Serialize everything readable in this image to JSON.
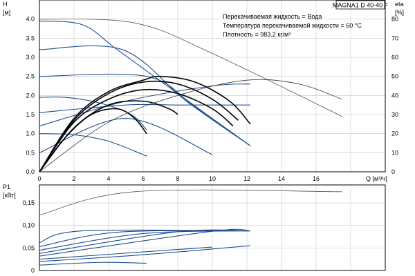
{
  "chart_data": [
    {
      "type": "line",
      "title": "MAGNA1 D 40-40 F",
      "annotations": [
        "Перекачиваемая жидкость = Вода",
        "Температура перекачиваемой жидкости = 60 °C",
        "Плотность = 983.2 кг/м³"
      ],
      "xlabel": "Q [м³/ч]",
      "ylabel_left": [
        "H",
        "[м]"
      ],
      "ylabel_right": [
        "eta",
        "[%]"
      ],
      "xlim": [
        0,
        20
      ],
      "ylim_left": [
        0,
        4.5
      ],
      "ylim_right": [
        0,
        90
      ],
      "x_ticks": [
        "0",
        "2",
        "4",
        "6",
        "8",
        "10",
        "12",
        "14",
        "16",
        "Q"
      ],
      "y_ticks_left": [
        "0.0",
        "0.5",
        "1.0",
        "1.5",
        "2.0",
        "2.5",
        "3.0",
        "3.5",
        "4.0"
      ],
      "y_ticks_right": [
        "0",
        "10",
        "20",
        "30",
        "40",
        "50",
        "60",
        "70",
        "80"
      ],
      "grid": true,
      "series": [
        {
          "kind": "head",
          "color": "#1f4e8c",
          "points": [
            [
              0,
              3.95
            ],
            [
              2.5,
              3.85
            ],
            [
              4.5,
              3.2
            ],
            [
              8,
              2.05
            ],
            [
              12.2,
              0.68
            ]
          ]
        },
        {
          "kind": "head",
          "color": "#1f4e8c",
          "points": [
            [
              0,
              3.2
            ],
            [
              4.8,
              3.2
            ],
            [
              8.5,
              1.85
            ],
            [
              12.2,
              0.68
            ]
          ]
        },
        {
          "kind": "head",
          "color": "#1f4e8c",
          "points": [
            [
              0,
              2.5
            ],
            [
              6.2,
              2.5
            ],
            [
              9,
              1.7
            ],
            [
              12.2,
              0.68
            ]
          ]
        },
        {
          "kind": "head",
          "color": "#1f4e8c",
          "points": [
            [
              0,
              1.95
            ],
            [
              1.5,
              1.95
            ],
            [
              3.5,
              1.8
            ],
            [
              5.3,
              1.5
            ],
            [
              6.2,
              1.1
            ]
          ]
        },
        {
          "kind": "head",
          "color": "#1f4e8c",
          "points": [
            [
              0,
              1.0
            ],
            [
              2,
              0.97
            ],
            [
              4,
              0.8
            ],
            [
              6,
              0.45
            ],
            [
              6.2,
              0.42
            ]
          ]
        },
        {
          "kind": "head",
          "color": "#1f4e8c",
          "points": [
            [
              0,
              1.55
            ],
            [
              5,
              1.75
            ],
            [
              8,
              1.75
            ],
            [
              12.2,
              1.75
            ]
          ]
        },
        {
          "kind": "head",
          "color": "#1f4e8c",
          "points": [
            [
              0,
              1.2
            ],
            [
              5,
              1.85
            ],
            [
              10,
              2.25
            ],
            [
              12.2,
              2.3
            ]
          ]
        },
        {
          "kind": "head",
          "color": "#1f4e8c",
          "points": [
            [
              0,
              0.5
            ],
            [
              5,
              1.4
            ],
            [
              10,
              0.45
            ]
          ]
        },
        {
          "kind": "head-max",
          "color": "#555555",
          "points": [
            [
              0,
              4.0
            ],
            [
              5.5,
              3.9
            ],
            [
              10,
              3.1
            ],
            [
              17.5,
              1.45
            ]
          ]
        },
        {
          "kind": "eta",
          "color": "#000000",
          "points": [
            [
              0,
              0
            ],
            [
              2,
              28
            ],
            [
              4,
              42
            ],
            [
              6,
              48
            ],
            [
              7,
              50
            ],
            [
              9,
              47
            ],
            [
              11,
              37
            ],
            [
              12.2,
              25
            ]
          ]
        },
        {
          "kind": "eta",
          "color": "#000000",
          "points": [
            [
              0,
              0
            ],
            [
              2,
              27
            ],
            [
              4,
              41
            ],
            [
              6,
              47
            ],
            [
              8,
              46
            ],
            [
              10,
              38
            ],
            [
              11.5,
              27
            ]
          ]
        },
        {
          "kind": "eta",
          "color": "#000000",
          "points": [
            [
              0,
              0
            ],
            [
              2,
              26
            ],
            [
              4,
              38
            ],
            [
              6,
              43
            ],
            [
              8,
              41
            ],
            [
              10,
              33
            ],
            [
              11.2,
              24
            ]
          ]
        },
        {
          "kind": "eta",
          "color": "#000000",
          "points": [
            [
              0,
              0
            ],
            [
              2,
              23
            ],
            [
              4,
              35
            ],
            [
              6,
              37
            ],
            [
              7.5,
              33
            ],
            [
              8,
              30
            ]
          ]
        },
        {
          "kind": "eta",
          "color": "#000000",
          "points": [
            [
              0,
              0
            ],
            [
              1.5,
              18
            ],
            [
              3,
              30
            ],
            [
              4.5,
              33
            ],
            [
              5.5,
              28
            ],
            [
              6.2,
              20
            ]
          ]
        },
        {
          "kind": "eta-max",
          "color": "#333333",
          "points": [
            [
              0,
              0
            ],
            [
              4,
              26
            ],
            [
              8,
              40
            ],
            [
              12,
              48
            ],
            [
              15,
              46
            ],
            [
              17.5,
              38
            ]
          ]
        }
      ]
    },
    {
      "type": "line",
      "ylabel": [
        "P1",
        "[кВт]"
      ],
      "xlim": [
        0,
        20
      ],
      "ylim": [
        0,
        0.19
      ],
      "y_ticks": [
        "0",
        "0,05",
        "0,10",
        "0,15"
      ],
      "grid": true,
      "series": [
        {
          "kind": "power-max",
          "color": "#555555",
          "points": [
            [
              0,
              0.123
            ],
            [
              5.5,
              0.175
            ],
            [
              17.5,
              0.175
            ]
          ]
        },
        {
          "kind": "power",
          "color": "#1f4e8c",
          "points": [
            [
              0,
              0.062
            ],
            [
              2.5,
              0.088
            ],
            [
              12.2,
              0.088
            ]
          ]
        },
        {
          "kind": "power",
          "color": "#1f4e8c",
          "points": [
            [
              0,
              0.053
            ],
            [
              4.5,
              0.085
            ],
            [
              12.2,
              0.088
            ]
          ]
        },
        {
          "kind": "power",
          "color": "#1f4e8c",
          "points": [
            [
              0,
              0.045
            ],
            [
              6,
              0.082
            ],
            [
              12.2,
              0.088
            ]
          ]
        },
        {
          "kind": "power",
          "color": "#1f4e8c",
          "points": [
            [
              0,
              0.038
            ],
            [
              8,
              0.086
            ],
            [
              12.2,
              0.088
            ]
          ]
        },
        {
          "kind": "power",
          "color": "#1f4e8c",
          "points": [
            [
              0,
              0.032
            ],
            [
              10,
              0.087
            ],
            [
              12.2,
              0.088
            ]
          ]
        },
        {
          "kind": "power",
          "color": "#1f4e8c",
          "points": [
            [
              0,
              0.025
            ],
            [
              10,
              0.052
            ]
          ]
        },
        {
          "kind": "power",
          "color": "#1f4e8c",
          "points": [
            [
              0,
              0.02
            ],
            [
              6,
              0.035
            ],
            [
              12.2,
              0.055
            ]
          ]
        },
        {
          "kind": "power",
          "color": "#1f4e8c",
          "points": [
            [
              0,
              0.012
            ],
            [
              3.5,
              0.018
            ],
            [
              6.2,
              0.016
            ]
          ]
        }
      ]
    }
  ]
}
